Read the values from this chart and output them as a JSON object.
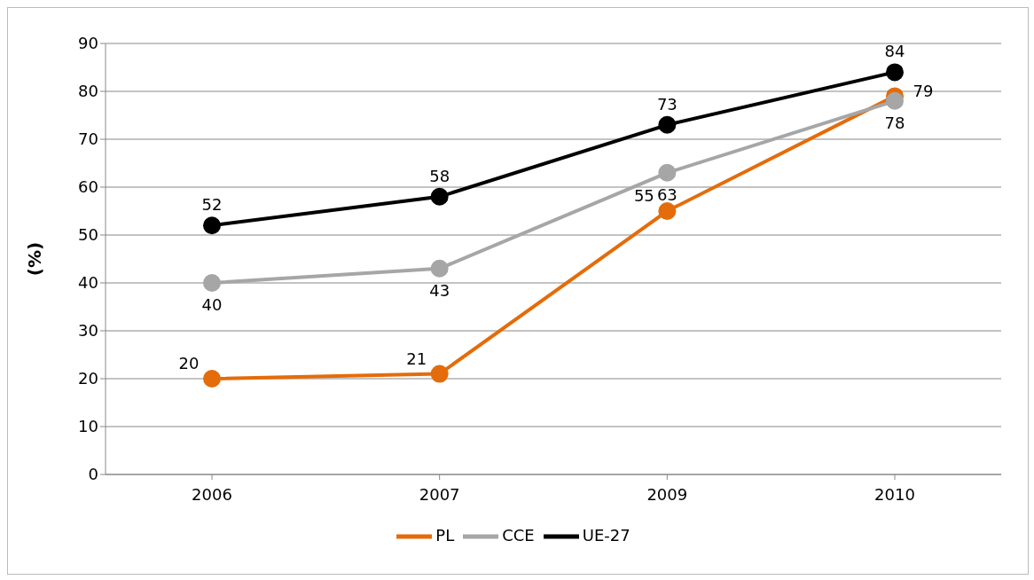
{
  "chart_data": {
    "type": "line",
    "ylabel": "(%)",
    "categories": [
      "2006",
      "2007",
      "2009",
      "2010"
    ],
    "series": [
      {
        "name": "PL",
        "color": "#e46c0a",
        "values": [
          20,
          21,
          55,
          79
        ]
      },
      {
        "name": "CCE",
        "color": "#a6a6a6",
        "values": [
          40,
          43,
          63,
          78
        ]
      },
      {
        "name": "UE-27",
        "color": "#000000",
        "values": [
          52,
          58,
          73,
          84
        ]
      }
    ],
    "ylim": [
      0,
      90
    ],
    "yticks": [
      0,
      10,
      20,
      30,
      40,
      50,
      60,
      70,
      80,
      90
    ],
    "grid": "y",
    "legend": "bottom",
    "marker": "circle",
    "line_style": "solid",
    "data_labels": true
  }
}
